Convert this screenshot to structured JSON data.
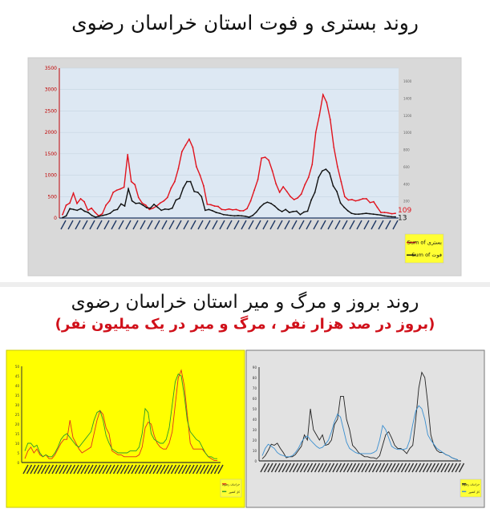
{
  "header": {
    "title": "روند بستری و فوت استان خراسان رضوی"
  },
  "section2": {
    "title": "روند بروز و مرگ و میر استان خراسان رضوی",
    "subtitle": "(بروز در صد هزار نفر ، مرگ و میر در یک میلیون نفر)"
  },
  "chart_data": [
    {
      "type": "line",
      "ylim": [
        0,
        3500
      ],
      "yticks": [
        "0",
        "500",
        "1000",
        "1500",
        "2000",
        "2500",
        "3000",
        "3500"
      ],
      "y2lim": [
        0,
        1750
      ],
      "y2ticks": [
        "200",
        "400",
        "600",
        "800",
        "1000",
        "1200",
        "1400",
        "1600"
      ],
      "grid": true,
      "legend": "right",
      "background": "#dde8f3",
      "series": [
        {
          "name": "Sum of بستری",
          "axis": "left",
          "color": "#e0141e",
          "end_label": "109",
          "values": [
            80,
            300,
            350,
            580,
            340,
            450,
            380,
            180,
            230,
            130,
            50,
            100,
            300,
            400,
            600,
            650,
            680,
            720,
            1480,
            850,
            780,
            480,
            350,
            300,
            200,
            230,
            280,
            350,
            400,
            480,
            700,
            850,
            1150,
            1550,
            1700,
            1840,
            1650,
            1200,
            1000,
            750,
            320,
            310,
            280,
            270,
            200,
            190,
            210,
            190,
            200,
            170,
            170,
            220,
            400,
            650,
            900,
            1400,
            1420,
            1350,
            1100,
            800,
            600,
            730,
            620,
            500,
            430,
            470,
            560,
            780,
            950,
            1250,
            2000,
            2400,
            2880,
            2700,
            2300,
            1650,
            1200,
            850,
            500,
            420,
            430,
            400,
            420,
            450,
            450,
            360,
            380,
            250,
            130,
            130,
            120,
            100,
            109
          ]
        },
        {
          "name": "Sum of فوت",
          "axis": "right",
          "color": "#111111",
          "end_label": "13",
          "values": [
            5,
            25,
            110,
            100,
            90,
            110,
            80,
            65,
            30,
            10,
            20,
            30,
            40,
            55,
            90,
            100,
            165,
            140,
            340,
            200,
            170,
            175,
            150,
            120,
            115,
            160,
            125,
            90,
            105,
            100,
            115,
            210,
            230,
            350,
            425,
            425,
            310,
            300,
            250,
            90,
            100,
            85,
            65,
            55,
            40,
            35,
            30,
            25,
            28,
            25,
            20,
            10,
            30,
            70,
            125,
            165,
            185,
            170,
            140,
            100,
            75,
            100,
            65,
            75,
            80,
            40,
            70,
            80,
            210,
            300,
            475,
            550,
            570,
            525,
            375,
            310,
            175,
            125,
            85,
            55,
            45,
            45,
            50,
            55,
            50,
            45,
            40,
            35,
            25,
            20,
            15,
            13
          ]
        }
      ]
    },
    {
      "type": "line",
      "ylim": [
        0,
        50
      ],
      "yticks": [
        "0",
        "5",
        "10",
        "15",
        "20",
        "25",
        "30",
        "35",
        "40",
        "45",
        "50"
      ],
      "background": "#ffff00",
      "legend": "bottom-right",
      "series": [
        {
          "name": "خراسان رضوی",
          "color": "#e0301e",
          "values": [
            2,
            6,
            8,
            5,
            7,
            4,
            3,
            4,
            2,
            2,
            4,
            7,
            10,
            12,
            12,
            22,
            13,
            10,
            7,
            5,
            6,
            7,
            8,
            15,
            22,
            27,
            25,
            18,
            15,
            6,
            5,
            4,
            4,
            3,
            3,
            3,
            3,
            3,
            4,
            8,
            18,
            21,
            20,
            14,
            10,
            8,
            7,
            7,
            10,
            16,
            30,
            44,
            48,
            40,
            25,
            10,
            7,
            7,
            7,
            7,
            5,
            3,
            2,
            1,
            1
          ]
        },
        {
          "name": "کل کشور",
          "color": "#2a9a2a",
          "values": [
            6,
            10,
            10,
            8,
            9,
            5,
            3,
            4,
            3,
            3,
            5,
            8,
            12,
            14,
            15,
            13,
            11,
            9,
            8,
            10,
            12,
            14,
            16,
            22,
            26,
            27,
            22,
            14,
            10,
            7,
            6,
            5,
            5,
            5,
            5,
            6,
            6,
            6,
            8,
            15,
            28,
            26,
            15,
            12,
            11,
            10,
            10,
            12,
            18,
            30,
            42,
            46,
            45,
            35,
            22,
            16,
            14,
            12,
            11,
            8,
            5,
            3,
            3,
            2,
            2
          ]
        }
      ]
    },
    {
      "type": "line",
      "ylim": [
        0,
        90
      ],
      "yticks": [
        "0",
        "10",
        "20",
        "30",
        "40",
        "50",
        "60",
        "70",
        "80",
        "90"
      ],
      "background": "#e2e2e2",
      "legend": "bottom-right",
      "series": [
        {
          "name": "خراسان رضوی",
          "color": "#222222",
          "values": [
            2,
            5,
            10,
            16,
            15,
            17,
            12,
            8,
            3,
            4,
            4,
            6,
            10,
            14,
            25,
            20,
            50,
            30,
            25,
            20,
            25,
            15,
            16,
            20,
            35,
            40,
            62,
            62,
            40,
            30,
            15,
            12,
            8,
            6,
            4,
            4,
            3,
            3,
            2,
            5,
            15,
            25,
            28,
            22,
            15,
            12,
            12,
            10,
            7,
            12,
            15,
            40,
            70,
            85,
            80,
            55,
            25,
            15,
            10,
            8,
            8,
            6,
            5,
            3,
            2,
            1
          ]
        },
        {
          "name": "کل کشور",
          "color": "#3a8fd0",
          "values": [
            5,
            12,
            16,
            14,
            12,
            8,
            6,
            5,
            4,
            4,
            5,
            8,
            12,
            18,
            22,
            24,
            20,
            17,
            14,
            12,
            13,
            16,
            20,
            28,
            38,
            45,
            42,
            30,
            18,
            12,
            10,
            8,
            7,
            7,
            7,
            7,
            7,
            8,
            10,
            20,
            34,
            30,
            22,
            14,
            12,
            11,
            11,
            11,
            12,
            20,
            35,
            48,
            53,
            50,
            40,
            25,
            20,
            16,
            12,
            10,
            8,
            6,
            5,
            3,
            2,
            1
          ]
        }
      ]
    }
  ]
}
